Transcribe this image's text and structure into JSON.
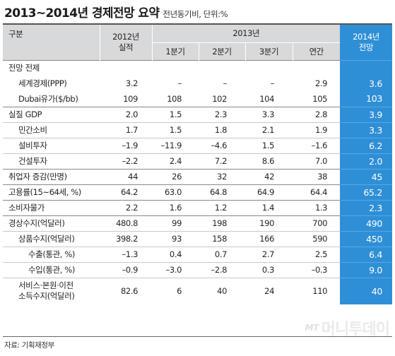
{
  "title": {
    "main": "2013~2014년 경제전망 요약",
    "sub": "전년동기비, 단위:%"
  },
  "header": {
    "category": "구분",
    "col_2012_line1": "2012년",
    "col_2012_line2": "실적",
    "col_2013": "2013년",
    "q1": "1분기",
    "q2": "2분기",
    "q3": "3분기",
    "annual": "연간",
    "col_2014_line1": "2014년",
    "col_2014_line2": "전망"
  },
  "rows": [
    {
      "label": "전망 전제",
      "v": [
        "",
        "",
        "",
        "",
        "",
        ""
      ]
    },
    {
      "label": "세계경제(PPP)",
      "v": [
        "3.2",
        "–",
        "–",
        "–",
        "2.9",
        "3.6"
      ]
    },
    {
      "label": "Dubai유가($/bb)",
      "v": [
        "109",
        "108",
        "102",
        "104",
        "105",
        "103"
      ]
    },
    {
      "label": "실질 GDP",
      "v": [
        "2.0",
        "1.5",
        "2.3",
        "3.3",
        "2.8",
        "3.9"
      ]
    },
    {
      "label": "민간소비",
      "v": [
        "1.7",
        "1.5",
        "1.8",
        "2.1",
        "1.9",
        "3.3"
      ]
    },
    {
      "label": "설비투자",
      "v": [
        "–1.9",
        "–11.9",
        "–4.6",
        "1.5",
        "–1.6",
        "6.2"
      ]
    },
    {
      "label": "건설투자",
      "v": [
        "–2.2",
        "2.4",
        "7.2",
        "8.6",
        "7.0",
        "2.0"
      ]
    },
    {
      "label": "취업자 증감(만명)",
      "v": [
        "44",
        "26",
        "32",
        "42",
        "38",
        "45"
      ]
    },
    {
      "label": "고용률(15~64세, %)",
      "v": [
        "64.2",
        "63.0",
        "64.8",
        "64.9",
        "64.4",
        "65.2"
      ]
    },
    {
      "label": "소비자물가",
      "v": [
        "2.2",
        "1.6",
        "1.2",
        "1.4",
        "1.3",
        "2.3"
      ]
    },
    {
      "label": "경상수지(억달러)",
      "v": [
        "480.8",
        "99",
        "198",
        "190",
        "700",
        "490"
      ]
    },
    {
      "label": "상품수지(억달러)",
      "v": [
        "398.2",
        "93",
        "158",
        "166",
        "590",
        "450"
      ]
    },
    {
      "label": "수출(통관, %)",
      "v": [
        "–1.3",
        "0.4",
        "0.7",
        "2.7",
        "2.5",
        "6.4"
      ]
    },
    {
      "label": "수입(통관, %)",
      "v": [
        "–0.9",
        "–3.0",
        "–2.8",
        "0.3",
        "–0.3",
        "9.0"
      ]
    },
    {
      "label_line1": "서비스·본원·이전",
      "label_line2": "소득수지(억달러)",
      "v": [
        "82.6",
        "6",
        "40",
        "24",
        "110",
        "40"
      ]
    }
  ],
  "source": "자료: 기획재정부",
  "watermark": {
    "mark": "MT",
    "text": "머니투데이"
  }
}
